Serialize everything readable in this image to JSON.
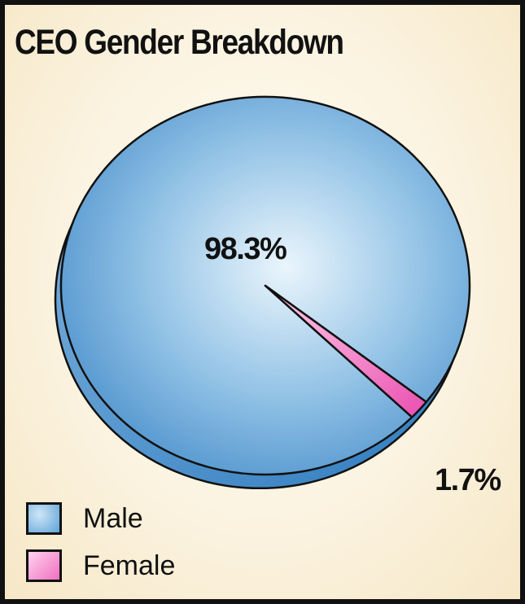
{
  "chart_data": {
    "type": "pie",
    "title": "CEO Gender Breakdown",
    "slices": [
      {
        "name": "Male",
        "value": 98.3,
        "label": "98.3%",
        "color": "#5da3d8"
      },
      {
        "name": "Female",
        "value": 1.7,
        "label": "1.7%",
        "color": "#f06fc0"
      }
    ],
    "legend": {
      "placement": "bottom-left",
      "items": [
        "Male",
        "Female"
      ]
    }
  }
}
